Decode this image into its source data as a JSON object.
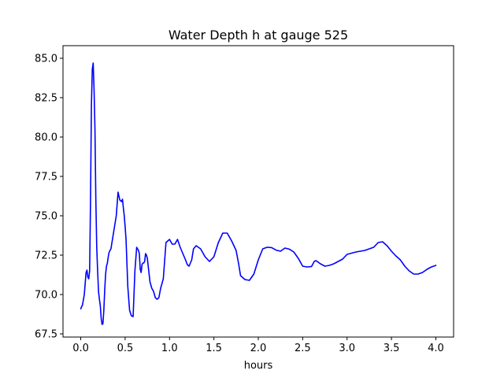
{
  "chart_data": {
    "type": "line",
    "title": "Water Depth h at gauge 525",
    "xlabel": "hours",
    "ylabel": "",
    "xlim": [
      -0.2,
      4.2
    ],
    "ylim": [
      67.3,
      85.8
    ],
    "xticks": [
      0.0,
      0.5,
      1.0,
      1.5,
      2.0,
      2.5,
      3.0,
      3.5,
      4.0
    ],
    "xtick_labels": [
      "0.0",
      "0.5",
      "1.0",
      "1.5",
      "2.0",
      "2.5",
      "3.0",
      "3.5",
      "4.0"
    ],
    "yticks": [
      67.5,
      70.0,
      72.5,
      75.0,
      77.5,
      80.0,
      82.5,
      85.0
    ],
    "ytick_labels": [
      "67.5",
      "70.0",
      "72.5",
      "75.0",
      "77.5",
      "80.0",
      "82.5",
      "85.0"
    ],
    "grid": false,
    "series": [
      {
        "color": "#0000ff",
        "x": [
          0.0,
          0.02,
          0.04,
          0.06,
          0.07,
          0.08,
          0.09,
          0.1,
          0.11,
          0.12,
          0.13,
          0.14,
          0.15,
          0.16,
          0.17,
          0.18,
          0.19,
          0.2,
          0.21,
          0.22,
          0.23,
          0.24,
          0.25,
          0.26,
          0.27,
          0.28,
          0.29,
          0.3,
          0.31,
          0.32,
          0.33,
          0.34,
          0.36,
          0.38,
          0.4,
          0.42,
          0.44,
          0.46,
          0.47,
          0.48,
          0.49,
          0.5,
          0.51,
          0.52,
          0.53,
          0.55,
          0.57,
          0.59,
          0.61,
          0.63,
          0.65,
          0.66,
          0.67,
          0.68,
          0.69,
          0.7,
          0.71,
          0.72,
          0.73,
          0.74,
          0.75,
          0.76,
          0.78,
          0.8,
          0.82,
          0.84,
          0.86,
          0.88,
          0.9,
          0.93,
          0.96,
          1.0,
          1.03,
          1.06,
          1.09,
          1.12,
          1.15,
          1.18,
          1.2,
          1.22,
          1.25,
          1.27,
          1.3,
          1.35,
          1.4,
          1.45,
          1.5,
          1.55,
          1.6,
          1.65,
          1.7,
          1.75,
          1.78,
          1.8,
          1.85,
          1.9,
          1.95,
          2.0,
          2.05,
          2.1,
          2.15,
          2.2,
          2.25,
          2.3,
          2.35,
          2.4,
          2.45,
          2.5,
          2.55,
          2.6,
          2.63,
          2.65,
          2.7,
          2.75,
          2.8,
          2.85,
          2.9,
          2.95,
          3.0,
          3.1,
          3.2,
          3.3,
          3.35,
          3.4,
          3.45,
          3.5,
          3.55,
          3.6,
          3.65,
          3.7,
          3.75,
          3.8,
          3.85,
          3.9,
          3.95,
          4.0
        ],
        "y": [
          69.1,
          69.35,
          70.0,
          71.4,
          71.55,
          71.1,
          71.0,
          71.5,
          76.0,
          82.0,
          84.3,
          84.7,
          83.0,
          80.5,
          76.0,
          73.0,
          71.5,
          70.2,
          69.7,
          69.3,
          68.5,
          68.1,
          68.15,
          69.0,
          70.3,
          71.3,
          71.8,
          72.0,
          72.4,
          72.7,
          72.8,
          72.9,
          73.6,
          74.3,
          75.0,
          76.5,
          76.0,
          75.9,
          76.05,
          75.5,
          75.0,
          74.3,
          73.5,
          72.0,
          70.5,
          69.0,
          68.65,
          68.6,
          71.5,
          73.0,
          72.8,
          72.6,
          71.6,
          71.4,
          71.9,
          72.0,
          72.0,
          72.1,
          72.6,
          72.5,
          72.3,
          71.8,
          70.8,
          70.4,
          70.2,
          69.8,
          69.7,
          69.8,
          70.4,
          71.0,
          73.3,
          73.5,
          73.2,
          73.2,
          73.5,
          73.0,
          72.6,
          72.2,
          71.9,
          71.8,
          72.2,
          72.9,
          73.1,
          72.9,
          72.4,
          72.1,
          72.4,
          73.3,
          73.9,
          73.9,
          73.4,
          72.8,
          71.9,
          71.2,
          70.95,
          70.9,
          71.3,
          72.2,
          72.9,
          73.0,
          72.98,
          72.82,
          72.75,
          72.95,
          72.88,
          72.7,
          72.3,
          71.8,
          71.75,
          71.78,
          72.1,
          72.15,
          71.95,
          71.8,
          71.85,
          71.95,
          72.1,
          72.25,
          72.55,
          72.7,
          72.8,
          73.0,
          73.3,
          73.35,
          73.1,
          72.75,
          72.45,
          72.2,
          71.8,
          71.5,
          71.3,
          71.3,
          71.4,
          71.6,
          71.75,
          71.85
        ]
      }
    ]
  }
}
